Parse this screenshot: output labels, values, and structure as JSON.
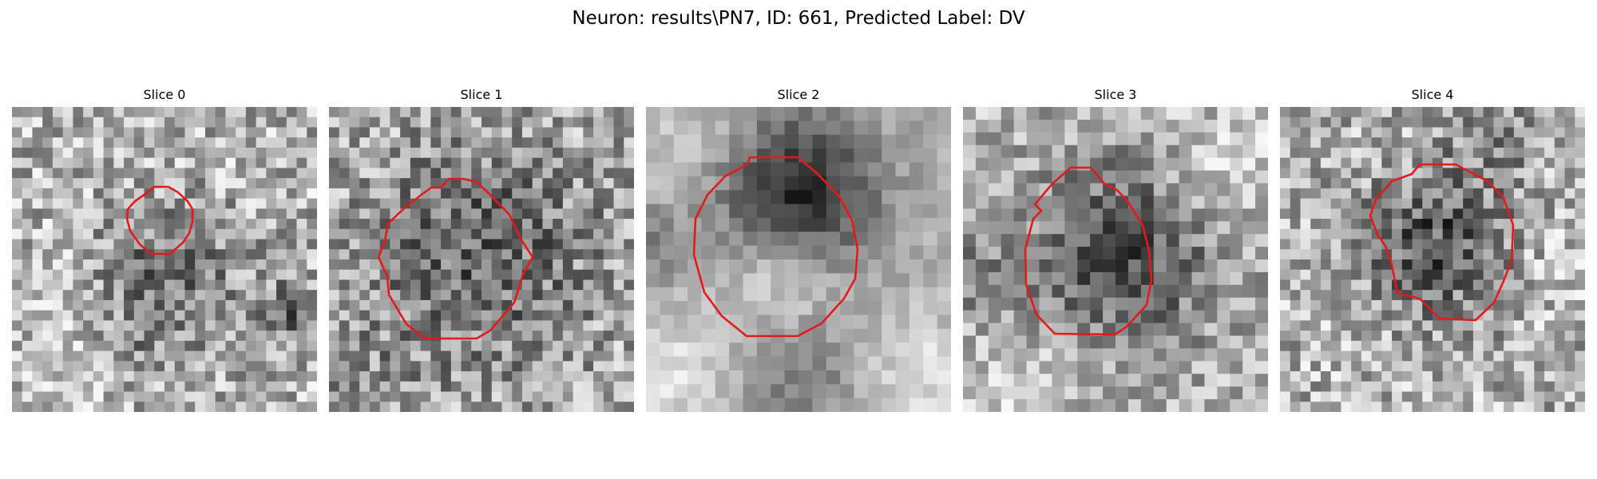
{
  "figure": {
    "title": "Neuron: results\\PN7, ID: 661, Predicted Label: DV"
  },
  "panels": [
    {
      "title": "Slice 0",
      "style": "fine",
      "pattern": "small-dark-center-lower",
      "seed": 11
    },
    {
      "title": "Slice 1",
      "style": "fine",
      "pattern": "large-dark-ring",
      "seed": 23
    },
    {
      "title": "Slice 2",
      "style": "smooth",
      "pattern": "dark-cap-bright-core",
      "seed": 37
    },
    {
      "title": "Slice 3",
      "style": "medium",
      "pattern": "dark-body",
      "seed": 41
    },
    {
      "title": "Slice 4",
      "style": "fine",
      "pattern": "dark-upper-center",
      "seed": 53
    }
  ],
  "colors": {
    "contour": "#e31a1c",
    "background": "#ffffff"
  }
}
